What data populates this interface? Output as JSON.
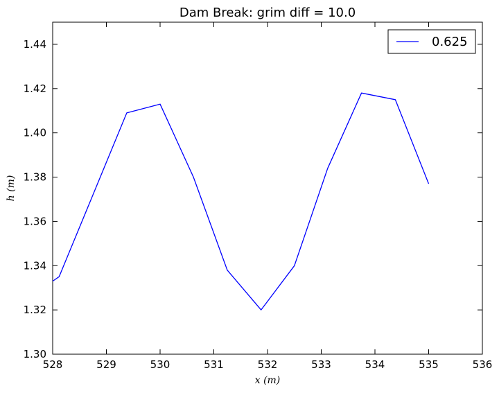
{
  "chart_data": {
    "type": "line",
    "title": "Dam Break: grim diff = 10.0",
    "xlabel": "x (m)",
    "ylabel": "h (m)",
    "xlim": [
      528,
      536
    ],
    "ylim": [
      1.3,
      1.45
    ],
    "xticks": [
      528,
      529,
      530,
      531,
      532,
      533,
      534,
      535,
      536
    ],
    "xtick_labels": [
      "528",
      "529",
      "530",
      "531",
      "532",
      "533",
      "534",
      "535",
      "536"
    ],
    "yticks": [
      1.3,
      1.32,
      1.34,
      1.36,
      1.38,
      1.4,
      1.42,
      1.44
    ],
    "ytick_labels": [
      "1.30",
      "1.32",
      "1.34",
      "1.36",
      "1.38",
      "1.40",
      "1.42",
      "1.44"
    ],
    "grid": false,
    "legend_position": "top-right",
    "series": [
      {
        "name": "0.625",
        "color": "#0000ff",
        "x": [
          528.0,
          528.12,
          528.75,
          529.38,
          530.0,
          530.62,
          531.25,
          531.88,
          532.5,
          533.12,
          533.75,
          534.38,
          535.0
        ],
        "y": [
          1.333,
          1.335,
          1.372,
          1.409,
          1.413,
          1.38,
          1.338,
          1.32,
          1.34,
          1.384,
          1.418,
          1.415,
          1.377
        ]
      }
    ]
  }
}
